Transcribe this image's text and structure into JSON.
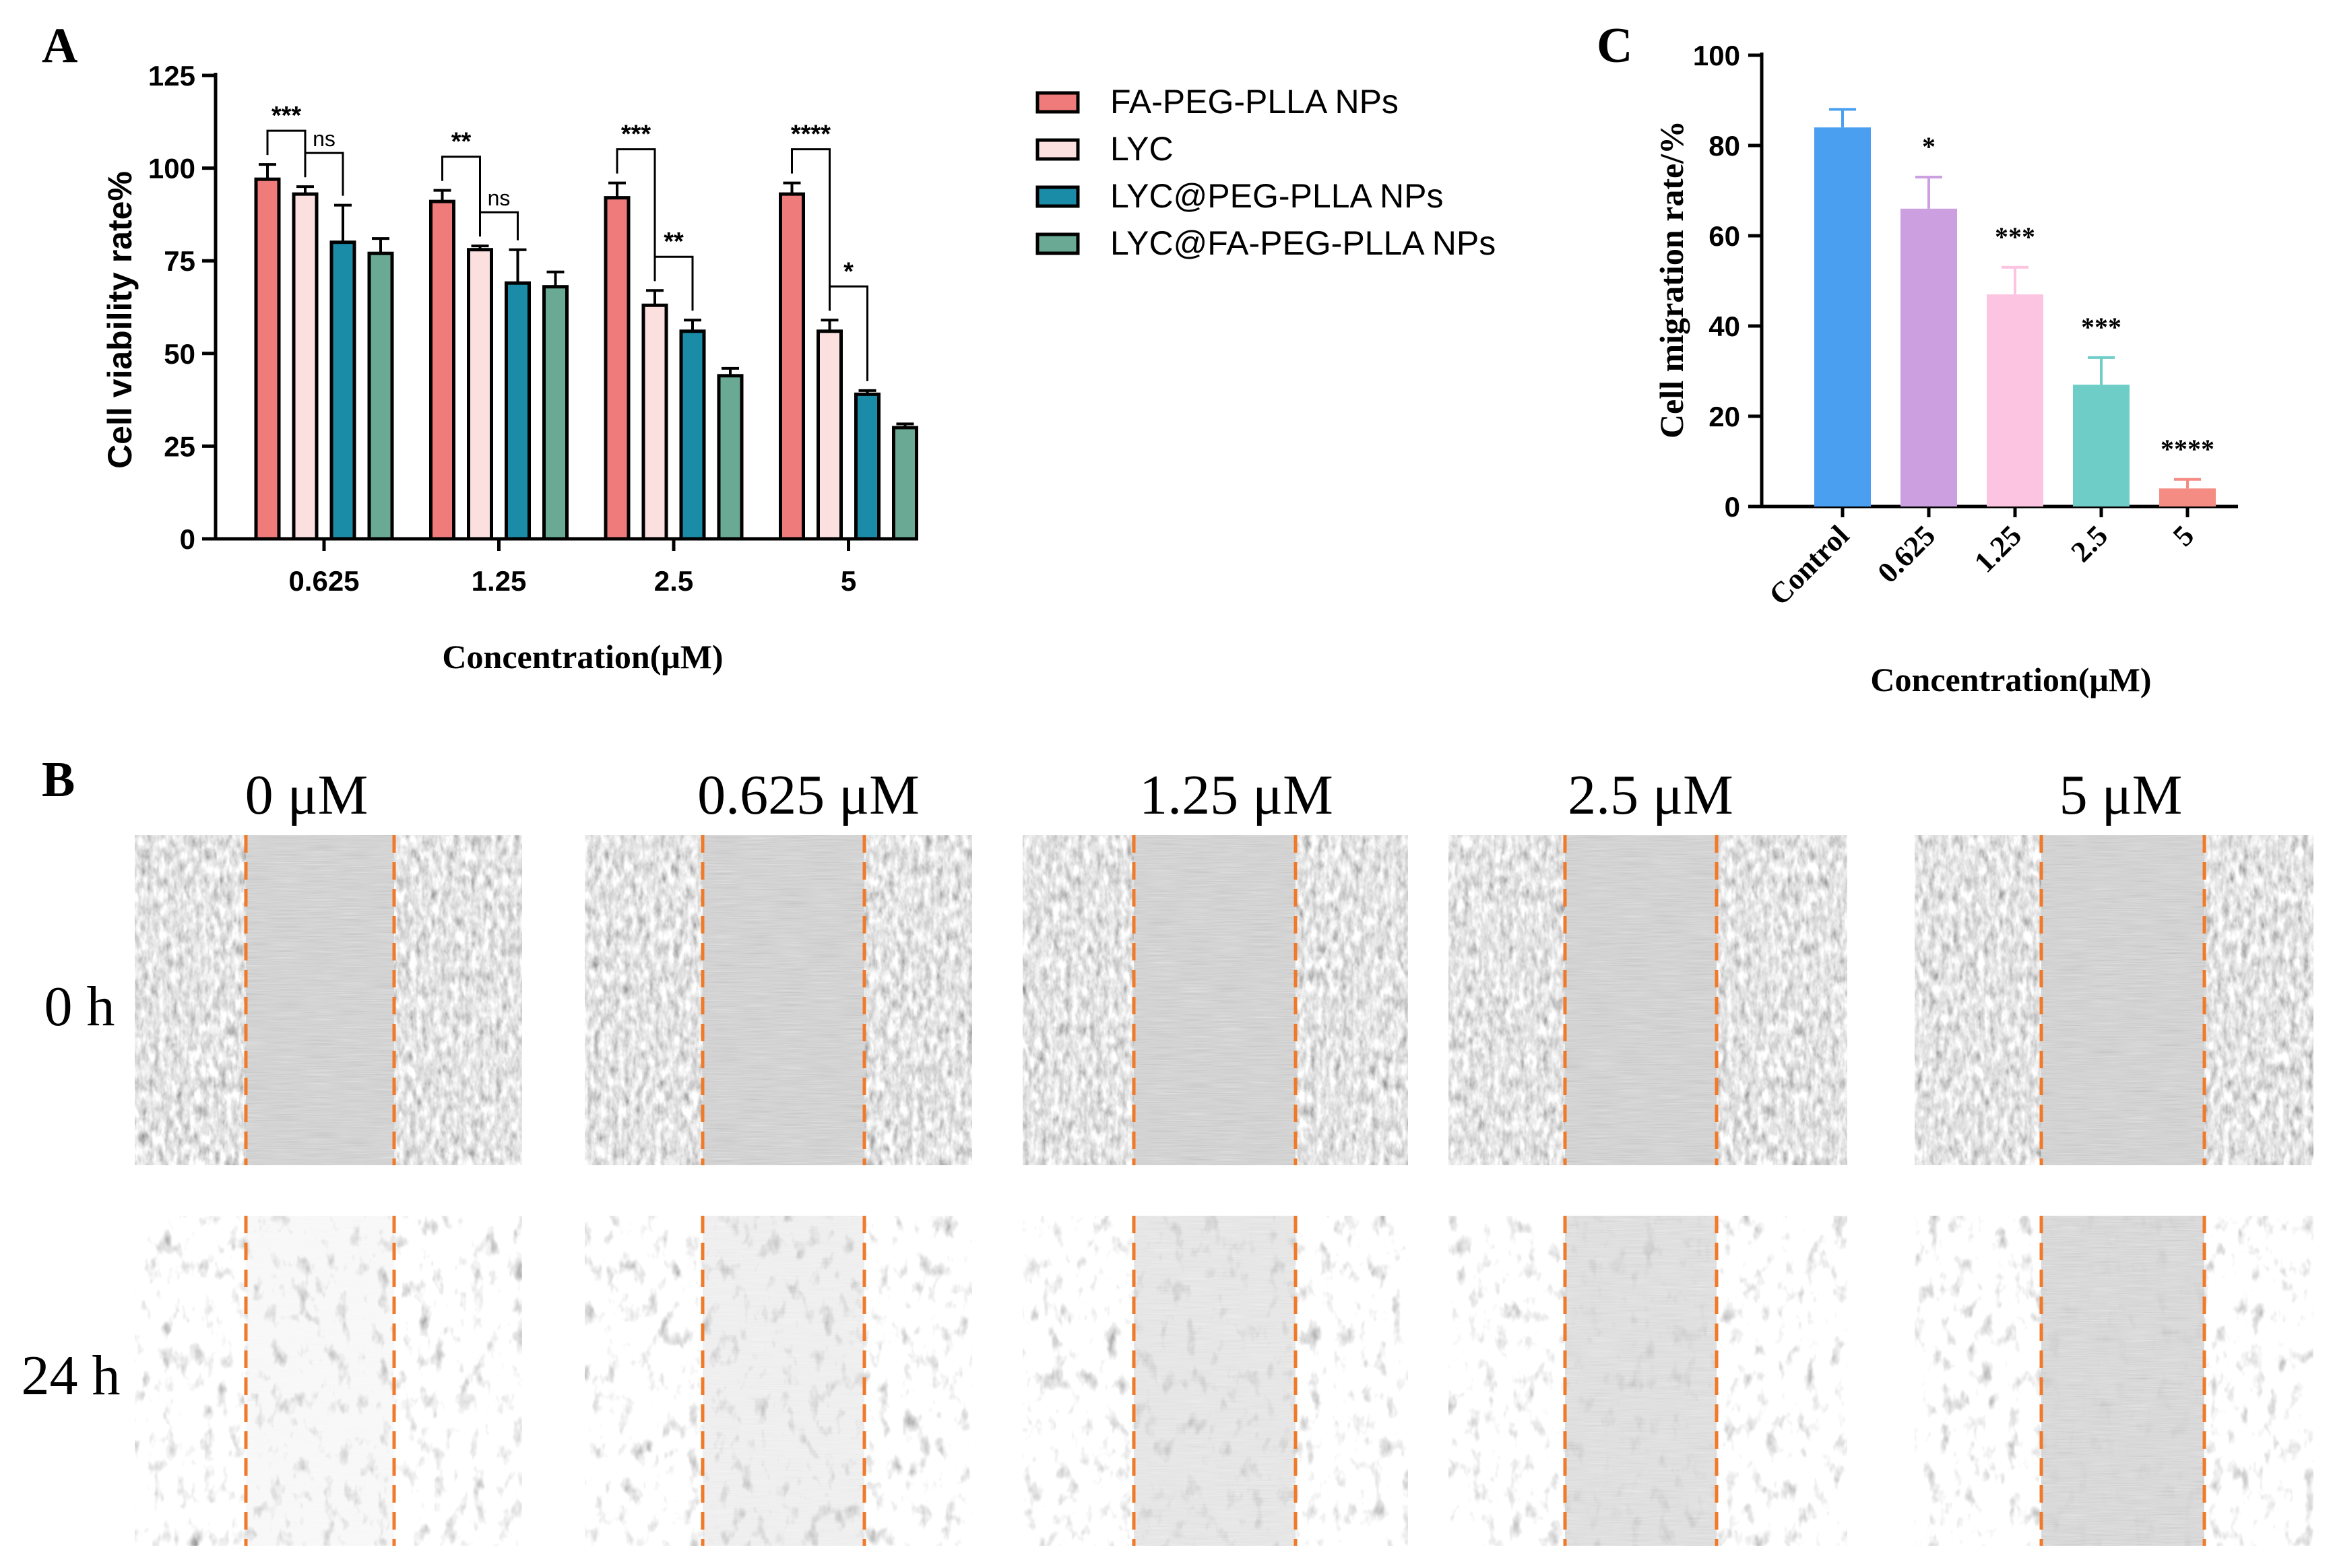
{
  "panels": {
    "a": "A",
    "b": "B",
    "c": "C"
  },
  "chart_data": [
    {
      "type": "bar",
      "panel": "A",
      "title": "",
      "xlabel": "Concentration(μM)",
      "ylabel": "Cell viability rate%",
      "ylim": [
        0,
        125
      ],
      "yticks": [
        0,
        25,
        50,
        75,
        100,
        125
      ],
      "categories": [
        "0.625",
        "1.25",
        "2.5",
        "5"
      ],
      "series": [
        {
          "name": "FA-PEG-PLLA NPs",
          "color": "#ef7b7b",
          "values": [
            97,
            91,
            92,
            93
          ],
          "errors": [
            4,
            3,
            4,
            3
          ]
        },
        {
          "name": "LYC",
          "color": "#fce0e0",
          "values": [
            93,
            78,
            63,
            56
          ],
          "errors": [
            2,
            1,
            4,
            3
          ]
        },
        {
          "name": "LYC@PEG-PLLA NPs",
          "color": "#1a8ca8",
          "values": [
            80,
            69,
            56,
            39
          ],
          "errors": [
            10,
            9,
            3,
            1
          ]
        },
        {
          "name": "LYC@FA-PEG-PLLA NPs",
          "color": "#6aaa95",
          "values": [
            77,
            68,
            44,
            30
          ],
          "errors": [
            4,
            4,
            2,
            1
          ]
        }
      ],
      "annotations": [
        {
          "category": 0,
          "from": 0,
          "to": 1,
          "label": "***"
        },
        {
          "category": 0,
          "from": 1,
          "to": 2,
          "label": "ns"
        },
        {
          "category": 1,
          "from": 0,
          "to": 1,
          "label": "**"
        },
        {
          "category": 1,
          "from": 1,
          "to": 2,
          "label": "ns"
        },
        {
          "category": 2,
          "from": 0,
          "to": 1,
          "label": "***"
        },
        {
          "category": 2,
          "from": 1,
          "to": 2,
          "label": "**"
        },
        {
          "category": 3,
          "from": 0,
          "to": 1,
          "label": "****"
        },
        {
          "category": 3,
          "from": 1,
          "to": 2,
          "label": "*"
        }
      ]
    },
    {
      "type": "bar",
      "panel": "C",
      "title": "",
      "xlabel": "Concentration(μM)",
      "ylabel": "Cell migration rate/%",
      "ylim": [
        0,
        100
      ],
      "yticks": [
        0,
        20,
        40,
        60,
        80,
        100
      ],
      "categories": [
        "Control",
        "0.625",
        "1.25",
        "2.5",
        "5"
      ],
      "values": [
        84,
        66,
        47,
        27,
        4
      ],
      "errors": [
        4,
        7,
        6,
        6,
        2
      ],
      "colors": [
        "#4a9ff0",
        "#cb9fe0",
        "#fcc4e0",
        "#6fcdc8",
        "#f48c84"
      ],
      "significance": [
        "",
        "*",
        "***",
        "***",
        "****"
      ]
    }
  ],
  "micrographs": {
    "columns": [
      "0 μM",
      "0.625 μM",
      "1.25 μM",
      "2.5 μM",
      "5 μM"
    ],
    "rows": [
      "0 h",
      "24 h"
    ],
    "line_color": "#f07a2a"
  }
}
